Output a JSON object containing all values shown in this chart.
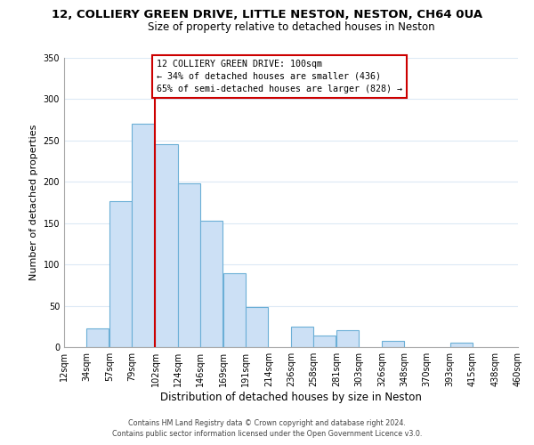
{
  "title": "12, COLLIERY GREEN DRIVE, LITTLE NESTON, NESTON, CH64 0UA",
  "subtitle": "Size of property relative to detached houses in Neston",
  "xlabel": "Distribution of detached houses by size in Neston",
  "ylabel": "Number of detached properties",
  "footer_line1": "Contains HM Land Registry data © Crown copyright and database right 2024.",
  "footer_line2": "Contains public sector information licensed under the Open Government Licence v3.0.",
  "bar_left_edges": [
    12,
    34,
    57,
    79,
    102,
    124,
    146,
    169,
    191,
    214,
    236,
    258,
    281,
    303,
    326,
    348,
    370,
    393,
    415,
    438
  ],
  "bar_heights": [
    0,
    23,
    177,
    270,
    246,
    198,
    153,
    89,
    48,
    0,
    25,
    14,
    21,
    0,
    8,
    0,
    0,
    5,
    0,
    0
  ],
  "bin_width": 22,
  "bar_color": "#cce0f5",
  "bar_edge_color": "#6bafd6",
  "tick_labels": [
    "12sqm",
    "34sqm",
    "57sqm",
    "79sqm",
    "102sqm",
    "124sqm",
    "146sqm",
    "169sqm",
    "191sqm",
    "214sqm",
    "236sqm",
    "258sqm",
    "281sqm",
    "303sqm",
    "326sqm",
    "348sqm",
    "370sqm",
    "393sqm",
    "415sqm",
    "438sqm",
    "460sqm"
  ],
  "vline_x": 102,
  "vline_color": "#cc0000",
  "annotation_text": "12 COLLIERY GREEN DRIVE: 100sqm\n← 34% of detached houses are smaller (436)\n65% of semi-detached houses are larger (828) →",
  "annotation_box_edge_color": "#cc0000",
  "annotation_box_face_color": "#ffffff",
  "ylim": [
    0,
    350
  ],
  "yticks": [
    0,
    50,
    100,
    150,
    200,
    250,
    300,
    350
  ],
  "background_color": "#ffffff",
  "grid_color": "#dce9f5"
}
